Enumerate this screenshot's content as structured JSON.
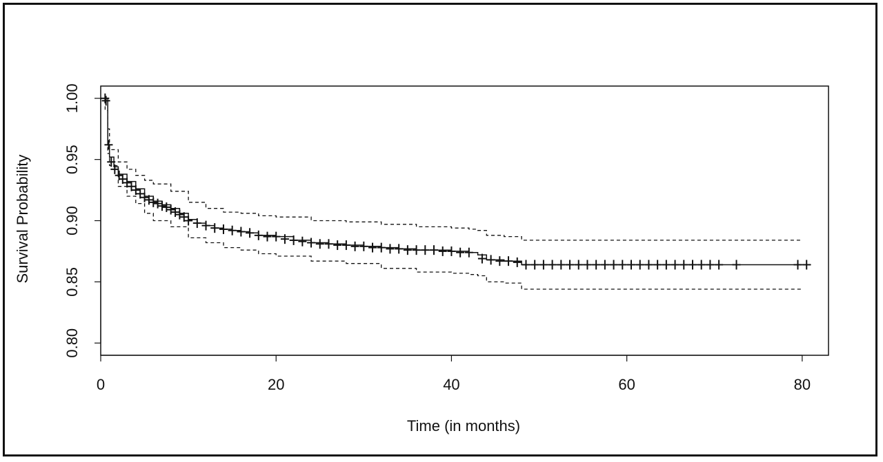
{
  "chart_data": {
    "type": "line",
    "title": "",
    "xlabel": "Time (in months)",
    "ylabel": "Survival Probability",
    "xlim": [
      0,
      83
    ],
    "ylim": [
      0.79,
      1.01
    ],
    "x_ticks": [
      0,
      20,
      40,
      60,
      80
    ],
    "x_tick_labels": [
      "0",
      "20",
      "40",
      "60",
      "80"
    ],
    "y_ticks": [
      0.8,
      0.85,
      0.9,
      0.95,
      1.0
    ],
    "y_tick_labels": [
      "0.80",
      "0.85",
      "0.90",
      "0.95",
      "1.00"
    ],
    "grid": false,
    "legend": "none",
    "colors": {
      "line": "#111111",
      "frame": "#111111"
    },
    "series": [
      {
        "role": "survival estimate",
        "style": "solid-step",
        "x": [
          0,
          0.3,
          0.5,
          0.8,
          1.0,
          1.5,
          2,
          3,
          4,
          5,
          6,
          7,
          8,
          9,
          10,
          11,
          12,
          13,
          14,
          15,
          16,
          17,
          18,
          20,
          22,
          24,
          26,
          28,
          30,
          32,
          34,
          36,
          38,
          40,
          42,
          43,
          44,
          46,
          48,
          50,
          60,
          70,
          80,
          81
        ],
        "y": [
          1.0,
          1.0,
          0.998,
          0.962,
          0.952,
          0.944,
          0.938,
          0.932,
          0.926,
          0.92,
          0.916,
          0.913,
          0.91,
          0.906,
          0.901,
          0.898,
          0.896,
          0.894,
          0.893,
          0.892,
          0.891,
          0.89,
          0.888,
          0.887,
          0.884,
          0.882,
          0.881,
          0.88,
          0.879,
          0.878,
          0.877,
          0.876,
          0.876,
          0.875,
          0.874,
          0.872,
          0.868,
          0.867,
          0.864,
          0.864,
          0.864,
          0.864,
          0.864,
          0.864
        ]
      },
      {
        "role": "upper confidence bound",
        "style": "dashed-step",
        "x": [
          0,
          0.5,
          0.8,
          1.0,
          2,
          3,
          4,
          5,
          6,
          8,
          10,
          12,
          14,
          16,
          18,
          20,
          24,
          28,
          32,
          36,
          40,
          42,
          43,
          44,
          46,
          48,
          60,
          70,
          80
        ],
        "y": [
          1.0,
          1.0,
          0.975,
          0.958,
          0.948,
          0.942,
          0.937,
          0.933,
          0.93,
          0.924,
          0.915,
          0.91,
          0.907,
          0.906,
          0.904,
          0.903,
          0.9,
          0.899,
          0.897,
          0.895,
          0.894,
          0.893,
          0.892,
          0.888,
          0.887,
          0.884,
          0.884,
          0.884,
          0.884
        ]
      },
      {
        "role": "lower confidence bound",
        "style": "dashed-step",
        "x": [
          0,
          0.5,
          0.8,
          1.0,
          2,
          3,
          4,
          5,
          6,
          8,
          10,
          12,
          14,
          16,
          18,
          20,
          24,
          28,
          32,
          36,
          40,
          42,
          43,
          44,
          46,
          48,
          60,
          70,
          80
        ],
        "y": [
          1.0,
          0.99,
          0.955,
          0.945,
          0.928,
          0.92,
          0.914,
          0.906,
          0.9,
          0.895,
          0.886,
          0.882,
          0.878,
          0.876,
          0.873,
          0.871,
          0.867,
          0.865,
          0.861,
          0.858,
          0.857,
          0.856,
          0.855,
          0.85,
          0.849,
          0.844,
          0.844,
          0.844,
          0.844
        ]
      }
    ],
    "censor_marks": {
      "marker": "+",
      "x": [
        0.5,
        0.6,
        0.9,
        1.2,
        1.6,
        2.1,
        2.5,
        3.0,
        3.5,
        4.0,
        4.5,
        5.0,
        5.5,
        6.0,
        6.5,
        7.0,
        7.5,
        8.0,
        8.5,
        9.0,
        9.5,
        10.0,
        11.0,
        12.0,
        13.0,
        14.0,
        15.0,
        16.0,
        17.0,
        18.0,
        19.0,
        20.0,
        21.0,
        22.0,
        23.0,
        24.0,
        25.0,
        26.0,
        27.0,
        28.0,
        29.0,
        30.0,
        31.0,
        32.0,
        33.0,
        34.0,
        35.0,
        36.0,
        37.0,
        38.0,
        39.0,
        40.0,
        41.0,
        42.0,
        43.5,
        44.5,
        45.5,
        46.5,
        47.5,
        48.5,
        49.5,
        50.5,
        51.5,
        52.5,
        53.5,
        54.5,
        55.5,
        56.5,
        57.5,
        58.5,
        59.5,
        60.5,
        61.5,
        62.5,
        63.5,
        64.5,
        65.5,
        66.5,
        67.5,
        68.5,
        69.5,
        70.5,
        72.5,
        79.5,
        80.5
      ],
      "y": [
        1.0,
        0.998,
        0.962,
        0.948,
        0.942,
        0.937,
        0.934,
        0.931,
        0.928,
        0.925,
        0.922,
        0.919,
        0.917,
        0.915,
        0.914,
        0.912,
        0.911,
        0.909,
        0.907,
        0.905,
        0.903,
        0.9,
        0.898,
        0.896,
        0.894,
        0.893,
        0.892,
        0.891,
        0.89,
        0.888,
        0.887,
        0.887,
        0.885,
        0.884,
        0.883,
        0.882,
        0.881,
        0.881,
        0.88,
        0.88,
        0.879,
        0.879,
        0.878,
        0.878,
        0.877,
        0.877,
        0.876,
        0.876,
        0.876,
        0.876,
        0.875,
        0.875,
        0.874,
        0.874,
        0.869,
        0.868,
        0.867,
        0.867,
        0.866,
        0.864,
        0.864,
        0.864,
        0.864,
        0.864,
        0.864,
        0.864,
        0.864,
        0.864,
        0.864,
        0.864,
        0.864,
        0.864,
        0.864,
        0.864,
        0.864,
        0.864,
        0.864,
        0.864,
        0.864,
        0.864,
        0.864,
        0.864,
        0.864,
        0.864,
        0.864
      ]
    }
  }
}
